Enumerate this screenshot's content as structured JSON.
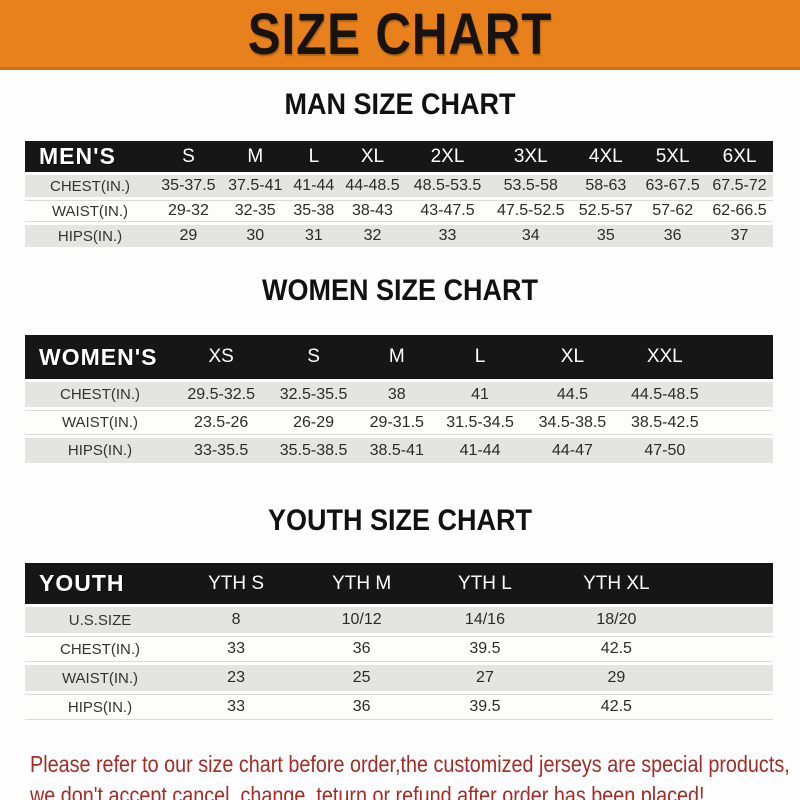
{
  "banner": {
    "title": "SIZE CHART"
  },
  "chart_data": [
    {
      "type": "table",
      "title": "MAN SIZE CHART",
      "columns": [
        "MEN'S",
        "S",
        "M",
        "L",
        "XL",
        "2XL",
        "3XL",
        "4XL",
        "5XL",
        "6XL"
      ],
      "rows": [
        [
          "CHEST(IN.)",
          "35-37.5",
          "37.5-41",
          "41-44",
          "44-48.5",
          "48.5-53.5",
          "53.5-58",
          "58-63",
          "63-67.5",
          "67.5-72"
        ],
        [
          "WAIST(IN.)",
          "29-32",
          "32-35",
          "35-38",
          "38-43",
          "43-47.5",
          "47.5-52.5",
          "52.5-57",
          "57-62",
          "62-66.5"
        ],
        [
          "HIPS(IN.)",
          "29",
          "30",
          "31",
          "32",
          "33",
          "34",
          "35",
          "36",
          "37"
        ]
      ]
    },
    {
      "type": "table",
      "title": "WOMEN SIZE CHART",
      "columns": [
        "WOMEN'S",
        "XS",
        "S",
        "M",
        "L",
        "XL",
        "XXL"
      ],
      "rows": [
        [
          "CHEST(IN.)",
          "29.5-32.5",
          "32.5-35.5",
          "38",
          "41",
          "44.5",
          "44.5-48.5"
        ],
        [
          "WAIST(IN.)",
          "23.5-26",
          "26-29",
          "29-31.5",
          "31.5-34.5",
          "34.5-38.5",
          "38.5-42.5"
        ],
        [
          "HIPS(IN.)",
          "33-35.5",
          "35.5-38.5",
          "38.5-41",
          "41-44",
          "44-47",
          "47-50"
        ]
      ]
    },
    {
      "type": "table",
      "title": "YOUTH SIZE CHART",
      "columns": [
        "YOUTH",
        "YTH S",
        "YTH M",
        "YTH L",
        "YTH XL"
      ],
      "rows": [
        [
          "U.S.SIZE",
          "8",
          "10/12",
          "14/16",
          "18/20"
        ],
        [
          "CHEST(IN.)",
          "33",
          "36",
          "39.5",
          "42.5"
        ],
        [
          "WAIST(IN.)",
          "23",
          "25",
          "27",
          "29"
        ],
        [
          "HIPS(IN.)",
          "33",
          "36",
          "39.5",
          "42.5"
        ]
      ]
    }
  ],
  "footer": {
    "line1": "Please refer to our size chart before order,the customized jerseys are special products,",
    "line2": "we don't accept cancel, change, teturn or refund after order has been placed!"
  },
  "colors": {
    "banner_orange": "#E8811B",
    "banner_border": "#CF6F12",
    "header_black": "#161616",
    "row_gray": "#E4E4E2",
    "row_white": "#FDFDFC",
    "footer_red": "#A32C26",
    "title_black": "#111111"
  }
}
